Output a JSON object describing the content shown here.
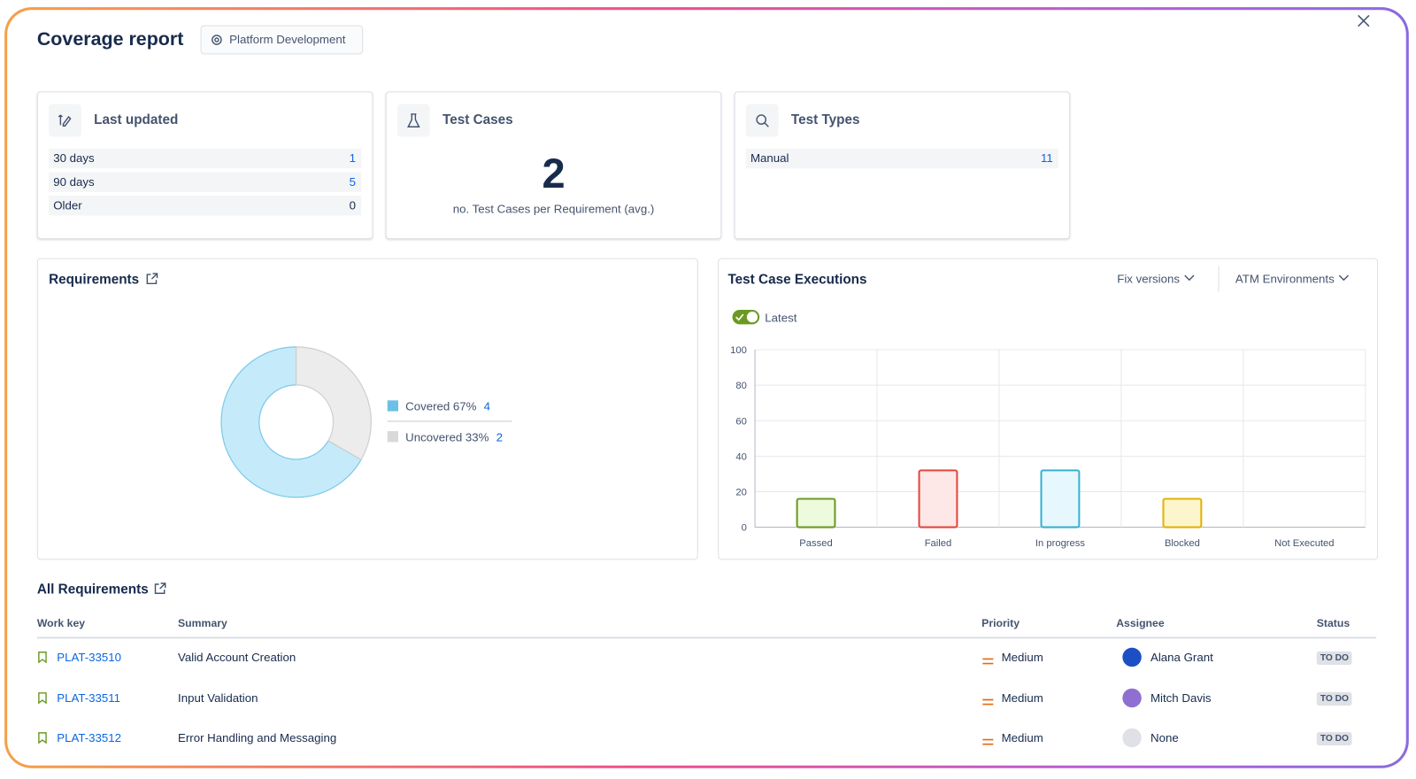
{
  "header": {
    "title": "Coverage report",
    "project": "Platform Development"
  },
  "cards": {
    "last_updated": {
      "title": "Last updated",
      "rows": [
        {
          "label": "30 days",
          "count": 1
        },
        {
          "label": "90 days",
          "count": 5
        },
        {
          "label": "Older",
          "count": 0
        }
      ]
    },
    "test_cases": {
      "title": "Test Cases",
      "count": 2,
      "caption": "no. Test Cases per Requirement (avg.)"
    },
    "test_types": {
      "title": "Test Types",
      "rows": [
        {
          "label": "Manual",
          "count": 11
        }
      ]
    }
  },
  "chart_data": [
    {
      "type": "donut",
      "title": "Requirements",
      "categories": [
        "Covered 67%",
        "Uncovered 33%"
      ],
      "values": [
        4,
        2
      ],
      "colors": [
        "#c5ebfa",
        "#ececec"
      ],
      "edge_colors": [
        "#7cc9ea",
        "#cfcfcf"
      ],
      "legend_colors": [
        "#6cc0e5",
        "#d9d9d9"
      ]
    },
    {
      "type": "bar",
      "title": "Test Case Executions",
      "filters": [
        "Fix versions",
        "ATM Environments"
      ],
      "toggle": "Latest",
      "categories": [
        "Passed",
        "Failed",
        "In progress",
        "Blocked",
        "Not Executed"
      ],
      "values": [
        16,
        32,
        32,
        16,
        0
      ],
      "colors": [
        "#eefadc",
        "#fde8e7",
        "#e6f8fd",
        "#fdf5cc",
        "#eeeeee"
      ],
      "edge_colors": [
        "#6a9a23",
        "#e2483d",
        "#3ab0d0",
        "#e2b203",
        "#999999"
      ],
      "ylim": [
        0,
        100
      ],
      "yticks": [
        0,
        20,
        40,
        60,
        80,
        100
      ],
      "grid": true
    }
  ],
  "table": {
    "title": "All Requirements",
    "columns": [
      "Work key",
      "Summary",
      "Priority",
      "Assignee",
      "Status"
    ],
    "rows": [
      [
        "PLAT-33510",
        "Valid Account Creation",
        "Medium",
        "Alana Grant",
        "TO DO"
      ],
      [
        "PLAT-33511",
        "Input Validation",
        "Medium",
        "Mitch Davis",
        "TO DO"
      ],
      [
        "PLAT-33512",
        "Error Handling and Messaging",
        "Medium",
        "None",
        "TO DO"
      ]
    ]
  }
}
